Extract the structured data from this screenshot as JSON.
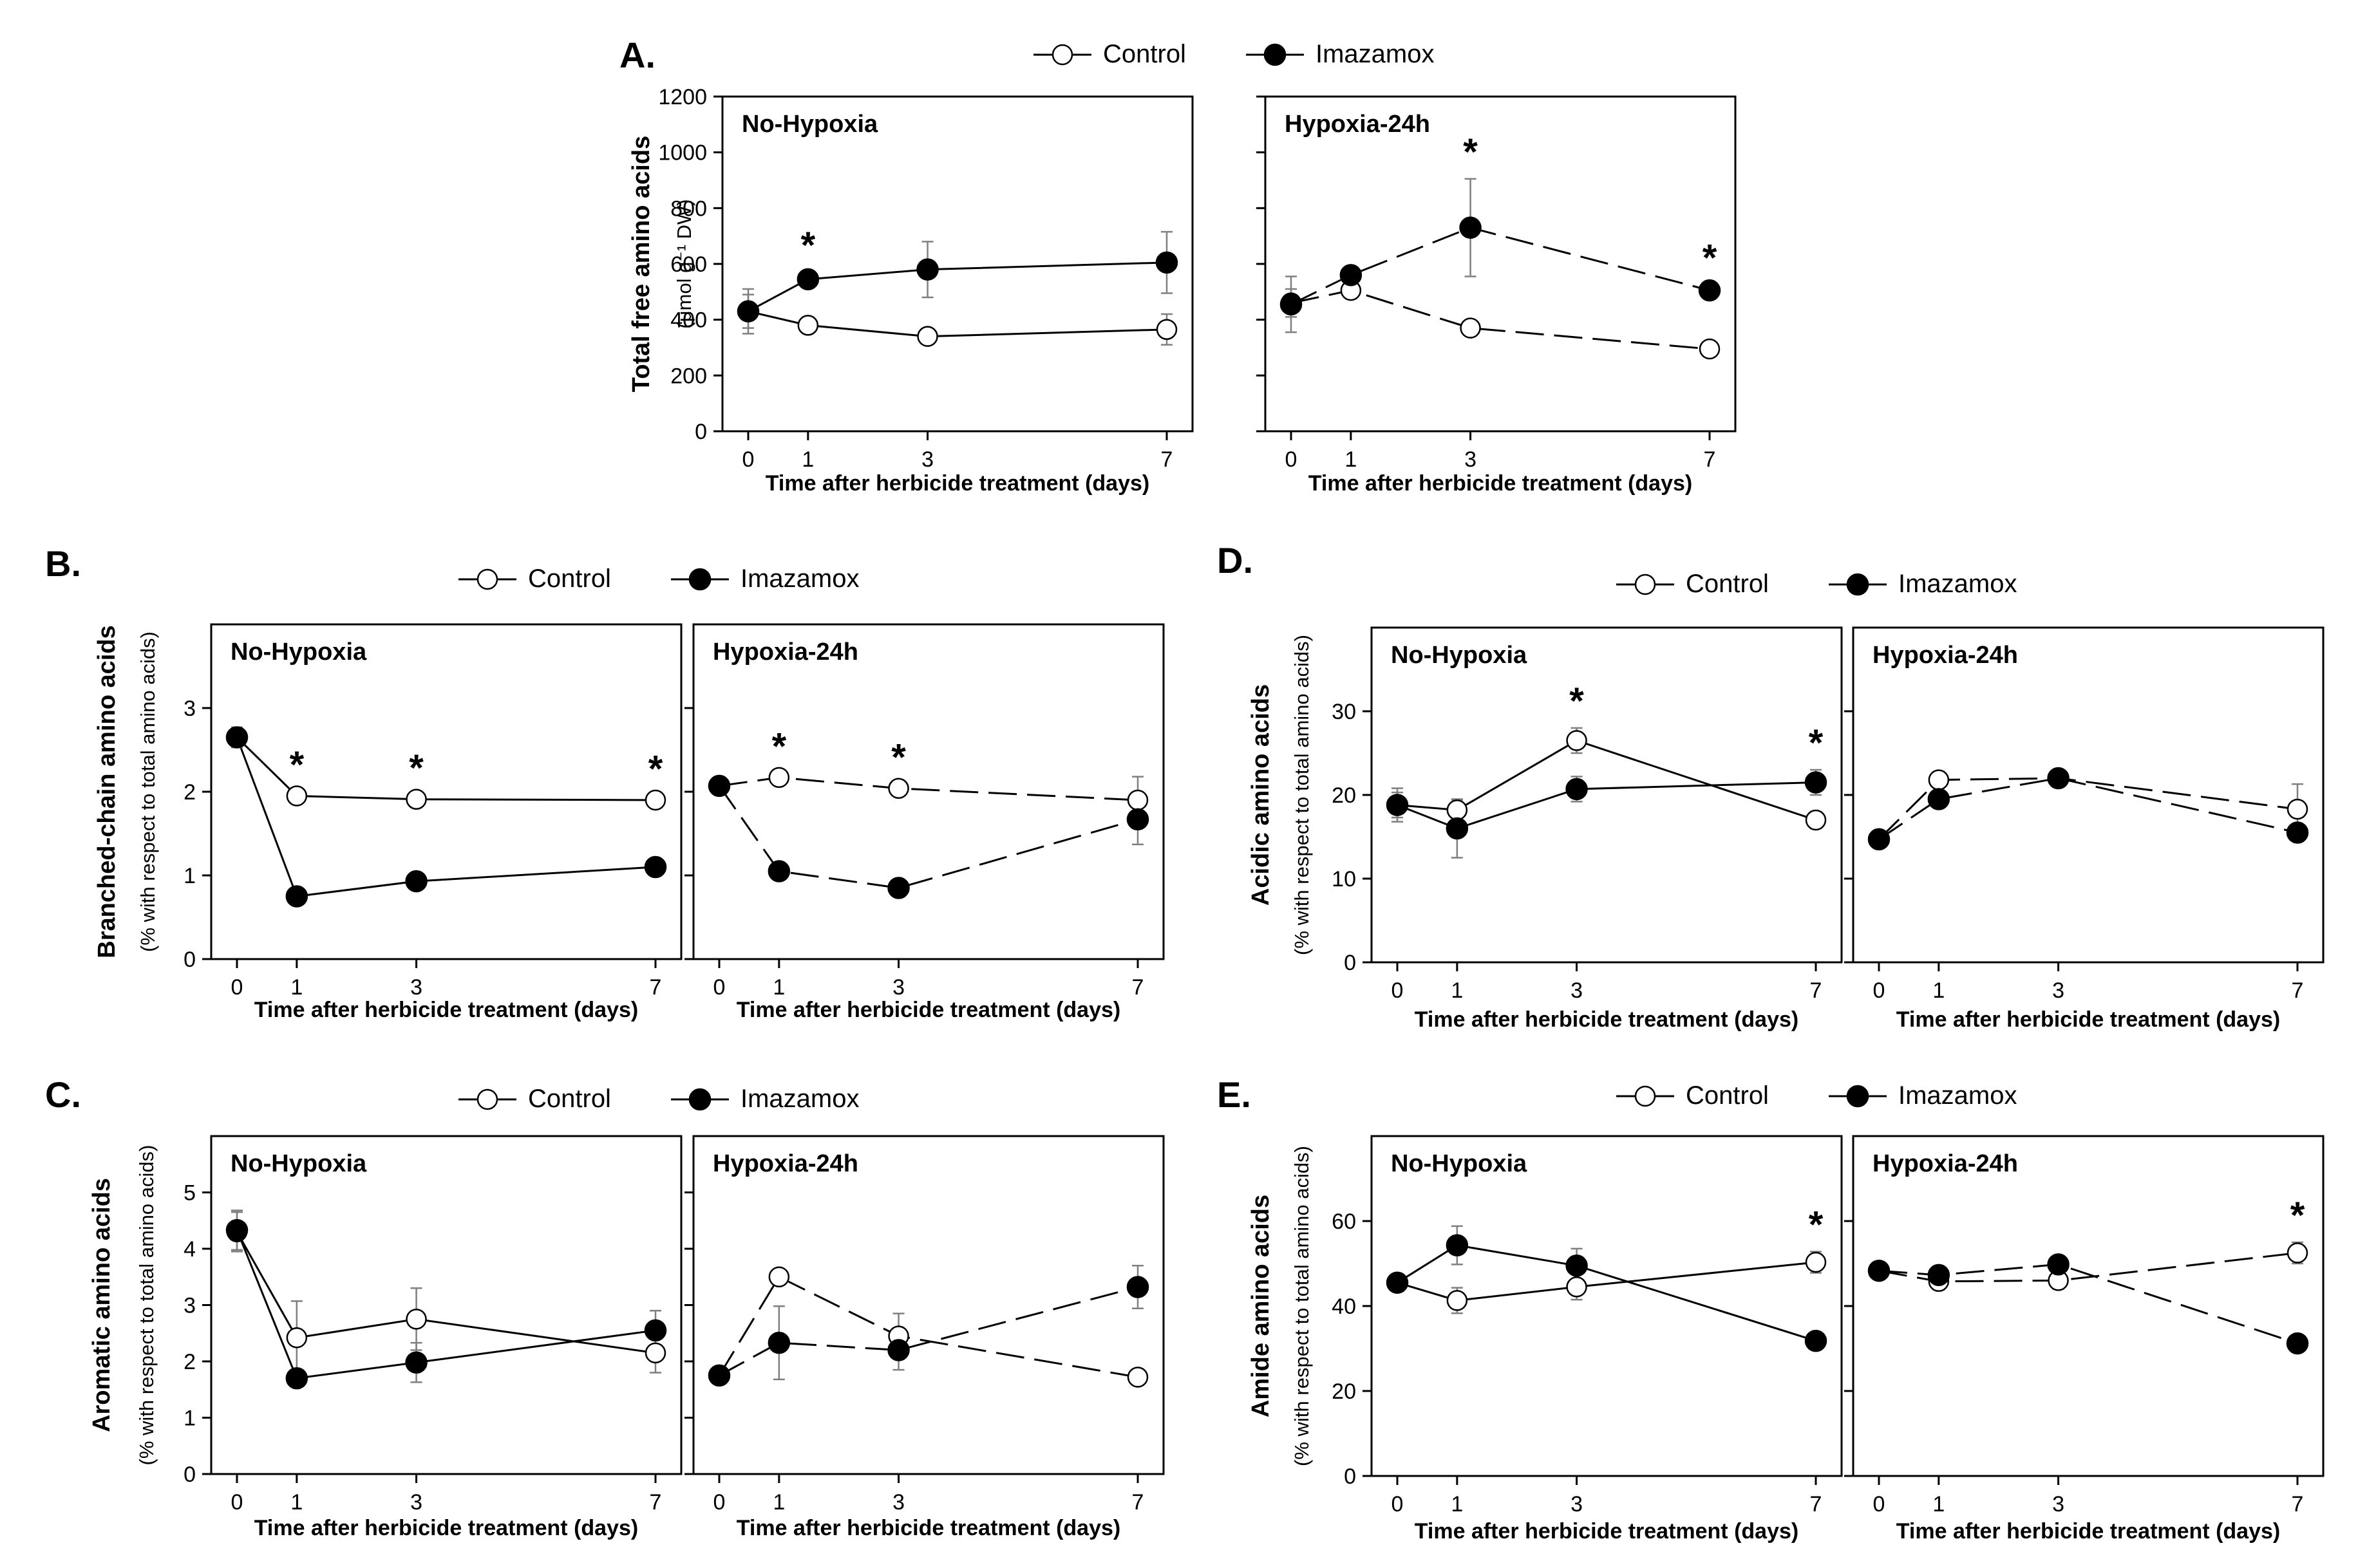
{
  "legend": {
    "control": "Control",
    "treated": "Imazamox"
  },
  "subplot_titles": [
    "No-Hypoxia",
    "Hypoxia-24h"
  ],
  "colors": {
    "axis": "#000000",
    "control_fill": "#ffffff",
    "treated_fill": "#000000",
    "errorbar": "#7f7f7f"
  },
  "chart_data": [
    {
      "panel": "A.",
      "type": "line",
      "ylabel": [
        "Total free amino acids",
        "(μmol g⁻¹ DW)"
      ],
      "xlabel": "Time after herbicide treatment (days)",
      "x": [
        0,
        1,
        3,
        7
      ],
      "ylim": [
        0,
        1200
      ],
      "yticks": [
        0,
        200,
        400,
        600,
        800,
        1000,
        1200
      ],
      "subplots": [
        {
          "title": "No-Hypoxia",
          "series": [
            {
              "name": "Control",
              "values": [
                430,
                380,
                340,
                365
              ],
              "err": [
                60,
                25,
                20,
                55
              ]
            },
            {
              "name": "Imazamox",
              "values": [
                430,
                545,
                580,
                605
              ],
              "err": [
                80,
                25,
                100,
                110
              ]
            }
          ],
          "stars": [
            1
          ]
        },
        {
          "title": "Hypoxia-24h",
          "series": [
            {
              "name": "Control",
              "values": [
                460,
                505,
                370,
                295
              ],
              "err": [
                50,
                30,
                20,
                15
              ]
            },
            {
              "name": "Imazamox",
              "values": [
                455,
                560,
                730,
                505
              ],
              "err": [
                100,
                20,
                175,
                20
              ]
            }
          ],
          "stars": [
            3,
            7
          ]
        }
      ]
    },
    {
      "panel": "B.",
      "type": "line",
      "ylabel": [
        "Branched-chain amino acids",
        "(% with respect to total amino acids)"
      ],
      "xlabel": "Time after herbicide treatment (days)",
      "x": [
        0,
        1,
        3,
        7
      ],
      "ylim": [
        0,
        4
      ],
      "yticks": [
        0,
        1,
        2,
        3
      ],
      "subplots": [
        {
          "title": "No-Hypoxia",
          "series": [
            {
              "name": "Control",
              "values": [
                2.65,
                1.95,
                1.91,
                1.9
              ],
              "err": [
                0.12,
                0.05,
                0.05,
                0.05
              ]
            },
            {
              "name": "Imazamox",
              "values": [
                2.65,
                0.75,
                0.93,
                1.1
              ],
              "err": [
                0.12,
                0.05,
                0.05,
                0.05
              ]
            }
          ],
          "stars": [
            1,
            3,
            7
          ]
        },
        {
          "title": "Hypoxia-24h",
          "series": [
            {
              "name": "Control",
              "values": [
                2.07,
                2.17,
                2.04,
                1.9
              ],
              "err": [
                0.05,
                0.05,
                0.05,
                0.28
              ]
            },
            {
              "name": "Imazamox",
              "values": [
                2.07,
                1.05,
                0.85,
                1.67
              ],
              "err": [
                0.05,
                0.05,
                0.05,
                0.3
              ]
            }
          ],
          "stars": [
            1,
            3
          ]
        }
      ]
    },
    {
      "panel": "C.",
      "type": "line",
      "ylabel": [
        "Aromatic amino acids",
        "(% with respect to total amino acids)"
      ],
      "xlabel": "Time after herbicide treatment (days)",
      "x": [
        0,
        1,
        3,
        7
      ],
      "ylim": [
        0,
        6
      ],
      "yticks": [
        0,
        1,
        2,
        3,
        4,
        5
      ],
      "subplots": [
        {
          "title": "No-Hypoxia",
          "series": [
            {
              "name": "Control",
              "values": [
                4.3,
                2.42,
                2.75,
                2.15
              ],
              "err": [
                0.35,
                0.65,
                0.55,
                0.35
              ]
            },
            {
              "name": "Imazamox",
              "values": [
                4.33,
                1.7,
                1.98,
                2.55
              ],
              "err": [
                0.35,
                0.15,
                0.35,
                0.35
              ]
            }
          ],
          "stars": []
        },
        {
          "title": "Hypoxia-24h",
          "series": [
            {
              "name": "Control",
              "values": [
                1.75,
                3.5,
                2.45,
                1.72
              ],
              "err": [
                0.1,
                0.1,
                0.4,
                0.05
              ]
            },
            {
              "name": "Imazamox",
              "values": [
                1.75,
                2.33,
                2.2,
                3.32
              ],
              "err": [
                0.1,
                0.65,
                0.35,
                0.38
              ]
            }
          ],
          "stars": []
        }
      ]
    },
    {
      "panel": "D.",
      "type": "line",
      "ylabel": [
        "Acidic amino acids",
        "(% with respect to total amino acids)"
      ],
      "xlabel": "Time after herbicide treatment (days)",
      "x": [
        0,
        1,
        3,
        7
      ],
      "ylim": [
        0,
        40
      ],
      "yticks": [
        0,
        10,
        20,
        30
      ],
      "subplots": [
        {
          "title": "No-Hypoxia",
          "series": [
            {
              "name": "Control",
              "values": [
                18.8,
                18.2,
                26.5,
                17.0
              ],
              "err": [
                1.5,
                1.2,
                1.5,
                1.0
              ]
            },
            {
              "name": "Imazamox",
              "values": [
                18.8,
                16.0,
                20.7,
                21.5
              ],
              "err": [
                2.0,
                3.5,
                1.5,
                1.5
              ]
            }
          ],
          "stars": [
            3,
            7
          ]
        },
        {
          "title": "Hypoxia-24h",
          "series": [
            {
              "name": "Control",
              "values": [
                14.7,
                21.8,
                22.0,
                18.3
              ],
              "err": [
                1.0,
                1.0,
                1.0,
                3.0
              ]
            },
            {
              "name": "Imazamox",
              "values": [
                14.7,
                19.5,
                22.0,
                15.5
              ],
              "err": [
                1.0,
                1.0,
                1.0,
                1.0
              ]
            }
          ],
          "stars": []
        }
      ]
    },
    {
      "panel": "E.",
      "type": "line",
      "ylabel": [
        "Amide amino acids",
        "(% with respect to total amino acids)"
      ],
      "xlabel": "Time after herbicide treatment (days)",
      "x": [
        0,
        1,
        3,
        7
      ],
      "ylim": [
        0,
        80
      ],
      "yticks": [
        0,
        20,
        40,
        60
      ],
      "subplots": [
        {
          "title": "No-Hypoxia",
          "series": [
            {
              "name": "Control",
              "values": [
                45.5,
                41.3,
                44.5,
                50.3
              ],
              "err": [
                2.0,
                3.0,
                3.0,
                2.5
              ]
            },
            {
              "name": "Imazamox",
              "values": [
                45.5,
                54.3,
                49.5,
                31.8
              ],
              "err": [
                2.0,
                4.5,
                4.0,
                1.5
              ]
            }
          ],
          "stars": [
            7
          ]
        },
        {
          "title": "Hypoxia-24h",
          "series": [
            {
              "name": "Control",
              "values": [
                48.3,
                45.8,
                46.0,
                52.5
              ],
              "err": [
                2.0,
                2.0,
                2.0,
                2.5
              ]
            },
            {
              "name": "Imazamox",
              "values": [
                48.3,
                47.3,
                49.8,
                31.2
              ],
              "err": [
                2.0,
                2.0,
                1.5,
                1.5
              ]
            }
          ],
          "stars": [
            7
          ]
        }
      ]
    }
  ]
}
